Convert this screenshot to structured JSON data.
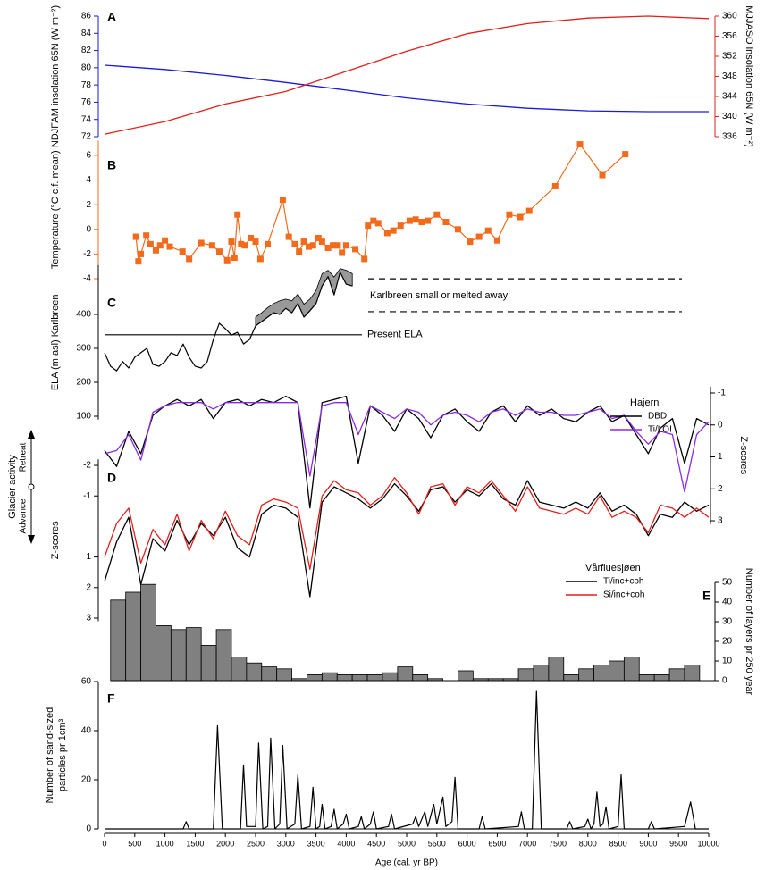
{
  "glacier_activity": {
    "title": "Glacier activity",
    "up": "Retreat",
    "down": "Advance"
  },
  "chart_data": [
    {
      "type": "line",
      "label": "A",
      "ylabel": "NDJFAM insolation 65N (W m⁻²)",
      "y2label": "MJJASO insolation 65N (W m⁻²)",
      "xlim": [
        0,
        10000
      ],
      "ylim": [
        72,
        86
      ],
      "yticks": [
        72,
        74,
        76,
        78,
        80,
        82,
        84,
        86
      ],
      "y2lim": [
        336,
        360
      ],
      "y2ticks": [
        336,
        340,
        344,
        348,
        352,
        356,
        360
      ],
      "x": [
        0,
        1000,
        2000,
        3000,
        4000,
        5000,
        6000,
        7000,
        8000,
        9000,
        10000
      ],
      "series": [
        {
          "color": "#1a1adb",
          "values": [
            80.3,
            79.8,
            79.1,
            78.3,
            77.4,
            76.5,
            75.8,
            75.3,
            75.0,
            74.9,
            74.9
          ]
        },
        {
          "color": "#e0201b",
          "axis": "y2",
          "values": [
            336.5,
            339,
            342.5,
            345,
            349,
            353,
            356.5,
            358.5,
            359.6,
            360,
            359.5
          ]
        }
      ]
    },
    {
      "type": "line",
      "label": "B",
      "ylabel": "Temperature (°C c.f. mean)",
      "color": "#f26b1d",
      "marker": "square",
      "xlim": [
        0,
        10000
      ],
      "ylim": [
        -4,
        7.2
      ],
      "yticks": [
        -4,
        -2,
        0,
        2,
        4,
        6
      ],
      "x": [
        520,
        560,
        600,
        690,
        760,
        850,
        920,
        1000,
        1080,
        1290,
        1400,
        1600,
        1780,
        1900,
        2030,
        2100,
        2150,
        2200,
        2260,
        2320,
        2420,
        2500,
        2580,
        2700,
        2950,
        3050,
        3150,
        3220,
        3300,
        3380,
        3450,
        3540,
        3600,
        3700,
        3780,
        3860,
        3930,
        4000,
        4150,
        4300,
        4360,
        4450,
        4530,
        4680,
        4780,
        4900,
        5050,
        5150,
        5250,
        5350,
        5500,
        5650,
        5850,
        6050,
        6200,
        6350,
        6500,
        6700,
        6880,
        7030,
        7460,
        7870,
        8240,
        8620
      ],
      "values": [
        -0.6,
        -2.6,
        -2.0,
        -0.5,
        -1.2,
        -1.7,
        -1.3,
        -0.9,
        -1.4,
        -1.8,
        -2.4,
        -1.1,
        -1.3,
        -1.8,
        -2.5,
        -1.0,
        -2.3,
        1.2,
        -1.2,
        -1.3,
        -0.7,
        -1.0,
        -2.4,
        -1.2,
        2.4,
        -0.6,
        -1.2,
        -1.8,
        -1.0,
        -1.4,
        -1.3,
        -0.7,
        -1.0,
        -1.5,
        -1.3,
        -1.3,
        -1.9,
        -1.3,
        -1.6,
        -2.4,
        0.3,
        0.7,
        0.5,
        -0.3,
        -0.1,
        0.3,
        0.7,
        0.8,
        0.6,
        0.7,
        1.2,
        0.6,
        0,
        -1.0,
        -0.6,
        -0.1,
        -0.9,
        1.2,
        1.0,
        1.5,
        3.5,
        6.9,
        4.4,
        6.1
      ]
    },
    {
      "type": "line",
      "label": "C",
      "ylabel": "ELA (m asl) Karlbreen",
      "color": "#000000",
      "band_color": "#999999",
      "xlim": [
        0,
        10000
      ],
      "ylim": [
        90,
        545
      ],
      "yticks": [
        100,
        200,
        300,
        400
      ],
      "x": [
        0,
        100,
        200,
        300,
        400,
        500,
        600,
        700,
        800,
        900,
        1000,
        1100,
        1200,
        1300,
        1400,
        1500,
        1600,
        1700,
        1800,
        1900,
        2000,
        2100,
        2200,
        2300,
        2400,
        2500,
        2600,
        2700,
        2800,
        2900,
        3000,
        3100,
        3200,
        3300,
        3400,
        3500,
        3600,
        3700,
        3800,
        3900,
        4000,
        4100
      ],
      "values": [
        287,
        247,
        234,
        261,
        242,
        274,
        287,
        300,
        253,
        247,
        261,
        287,
        279,
        313,
        274,
        247,
        242,
        261,
        326,
        374,
        358,
        339,
        347,
        313,
        326,
        366,
        379,
        392,
        405,
        400,
        418,
        405,
        432,
        392,
        411,
        432,
        484,
        511,
        458,
        524,
        489,
        484
      ],
      "band": {
        "x": [
          2500,
          2600,
          2700,
          2800,
          2900,
          3000,
          3100,
          3200,
          3300,
          3400,
          3500,
          3600,
          3700,
          3800,
          3900,
          4000,
          4100
        ],
        "low": [
          366,
          379,
          392,
          405,
          400,
          418,
          405,
          432,
          392,
          411,
          432,
          484,
          511,
          458,
          524,
          489,
          484
        ],
        "high": [
          392,
          405,
          420,
          432,
          440,
          445,
          440,
          460,
          430,
          445,
          470,
          520,
          530,
          510,
          535,
          530,
          520
        ]
      },
      "reference_lines": [
        {
          "value": 340,
          "style": "solid",
          "label": "Present ELA"
        },
        {
          "value": 505,
          "style": "dashed"
        },
        {
          "value": 408,
          "style": "dashed"
        }
      ],
      "annotation": "Karlbreen small or melted away"
    },
    {
      "type": "line",
      "ylabel": "Z-scores",
      "y_inverted": true,
      "legend_title": "Hajern",
      "legend": "upper right",
      "xlim": [
        0,
        10000
      ],
      "ylim": [
        -1.2,
        3.1
      ],
      "yticks": [
        -1,
        0,
        1,
        2,
        3
      ],
      "x": [
        0,
        200,
        400,
        600,
        800,
        1000,
        1200,
        1400,
        1600,
        1800,
        2000,
        2200,
        2400,
        2600,
        2800,
        3000,
        3200,
        3400,
        3600,
        3800,
        4000,
        4200,
        4400,
        4600,
        4800,
        5000,
        5200,
        5400,
        5600,
        5800,
        6000,
        6200,
        6400,
        6600,
        6800,
        7000,
        7200,
        7400,
        7600,
        7800,
        8000,
        8200,
        8400,
        8600,
        8800,
        9000,
        9200,
        9400,
        9600,
        9800,
        10000
      ],
      "series": [
        {
          "name": "DBD",
          "color": "#000000",
          "values": [
            0.8,
            1.3,
            0.2,
            0.9,
            -0.3,
            -0.6,
            -0.8,
            -0.6,
            -0.8,
            -0.2,
            -0.7,
            -0.8,
            -0.6,
            -0.8,
            -0.7,
            -0.9,
            -0.7,
            2.6,
            -0.7,
            -0.8,
            -0.9,
            1.2,
            -0.6,
            -0.3,
            0.2,
            -0.5,
            -0.2,
            0.4,
            -0.3,
            -0.5,
            -0.1,
            0.2,
            -0.4,
            -0.6,
            -0.1,
            -0.6,
            -0.3,
            -0.5,
            -0.2,
            -0.1,
            -0.4,
            -0.6,
            -0.1,
            -0.3,
            0.3,
            0.9,
            0.1,
            -0.2,
            1.2,
            -0.2,
            0
          ]
        },
        {
          "name": "Ti/LOI",
          "color": "#8a2be2",
          "values": [
            0.9,
            0.8,
            0.3,
            1.1,
            -0.4,
            -0.6,
            -0.7,
            -0.7,
            -0.7,
            -0.5,
            -0.7,
            -0.7,
            -0.7,
            -0.7,
            -0.7,
            -0.7,
            -0.7,
            1.6,
            -0.6,
            -0.7,
            -0.7,
            0.3,
            -0.6,
            -0.4,
            -0.2,
            -0.5,
            -0.4,
            0,
            -0.3,
            -0.4,
            -0.3,
            -0.1,
            -0.4,
            -0.5,
            -0.3,
            -0.5,
            -0.4,
            -0.4,
            -0.3,
            -0.3,
            -0.4,
            -0.5,
            -0.2,
            -0.3,
            0.2,
            0.6,
            0.2,
            0.3,
            2.1,
            0.3,
            -0.1
          ]
        }
      ]
    },
    {
      "type": "line",
      "label": "D",
      "ylabel": "Z-scores",
      "y_inverted": true,
      "legend_title": "Vårfluesjøen",
      "legend": "lower right",
      "xlim": [
        0,
        10000
      ],
      "ylim": [
        -2.2,
        3.1
      ],
      "yticks": [
        -2,
        -1,
        1,
        2,
        3
      ],
      "x": [
        0,
        200,
        400,
        600,
        800,
        1000,
        1200,
        1400,
        1600,
        1800,
        2000,
        2200,
        2400,
        2600,
        2800,
        3000,
        3200,
        3400,
        3600,
        3800,
        4000,
        4200,
        4400,
        4600,
        4800,
        5000,
        5200,
        5400,
        5600,
        5800,
        6000,
        6200,
        6400,
        6600,
        6800,
        7000,
        7200,
        7400,
        7600,
        7800,
        8000,
        8200,
        8400,
        8600,
        8800,
        9000,
        9200,
        9400,
        9600,
        9800,
        10000
      ],
      "series": [
        {
          "name": "Ti/inc+coh",
          "color": "#000000",
          "values": [
            1.8,
            0.5,
            -0.3,
            1.9,
            0.4,
            0.8,
            -0.2,
            0.6,
            -0.1,
            0.3,
            -0.3,
            0.7,
            1.0,
            -0.4,
            -0.7,
            -0.6,
            -0.3,
            2.3,
            -0.8,
            -1.3,
            -1.1,
            -0.9,
            -0.6,
            -0.9,
            -1.4,
            -1.0,
            -0.5,
            -1.2,
            -1.3,
            -0.8,
            -1.2,
            -1.0,
            -1.4,
            -0.9,
            -0.7,
            -1.5,
            -0.8,
            -0.7,
            -0.6,
            -0.8,
            -0.6,
            -1.1,
            -0.5,
            -0.7,
            -0.4,
            0.3,
            -0.4,
            -0.3,
            -0.8,
            -0.5,
            -0.7
          ]
        },
        {
          "name": "Si/inc+coh",
          "color": "#e0201b",
          "values": [
            1.0,
            -0.1,
            -0.6,
            1.2,
            0.1,
            0.6,
            -0.4,
            0.8,
            -0.2,
            0.4,
            -0.5,
            0.3,
            0.6,
            -0.7,
            -0.9,
            -0.8,
            -0.6,
            1.4,
            -1.0,
            -1.5,
            -1.2,
            -1.1,
            -0.7,
            -1.0,
            -1.6,
            -1.1,
            -0.4,
            -1.3,
            -1.4,
            -0.7,
            -1.3,
            -1.1,
            -1.5,
            -1.0,
            -0.5,
            -1.3,
            -0.6,
            -0.5,
            -0.4,
            -0.6,
            -0.4,
            -1.0,
            -0.3,
            -0.5,
            -0.3,
            0.2,
            -0.7,
            -0.6,
            -0.3,
            -0.6,
            -0.3
          ]
        }
      ]
    },
    {
      "type": "histogram",
      "label": "E",
      "ylabel": "Number of layers pr 250 year",
      "color": "#808080",
      "xlim": [
        0,
        10000
      ],
      "ylim": [
        0,
        50
      ],
      "yticks": [
        0,
        10,
        20,
        30,
        40,
        50
      ],
      "bins": [
        100,
        350,
        600,
        850,
        1100,
        1350,
        1600,
        1850,
        2100,
        2350,
        2600,
        2850,
        3100,
        3350,
        3600,
        3850,
        4100,
        4350,
        4600,
        4850,
        5100,
        5350,
        5600,
        5850,
        6100,
        6350,
        6600,
        6850,
        7100,
        7350,
        7600,
        7850,
        8100,
        8350,
        8600,
        8850,
        9100,
        9350,
        9600,
        9850
      ],
      "counts": [
        41,
        45,
        49,
        28,
        26,
        27,
        18,
        26,
        12,
        9,
        7,
        6,
        1,
        3,
        4,
        3,
        3,
        3,
        4,
        7,
        3,
        1,
        0,
        5,
        1,
        1,
        1,
        6,
        8,
        12,
        3,
        6,
        8,
        10,
        12,
        3,
        3,
        6,
        8
      ]
    },
    {
      "type": "line",
      "label": "F",
      "ylabel": [
        "Number of sand-sized",
        "particles pr 1cm³"
      ],
      "xlabel": "Age (cal. yr BP)",
      "color": "#000000",
      "xlim": [
        0,
        10000
      ],
      "xticks": [
        0,
        500,
        1000,
        1500,
        2000,
        2500,
        3000,
        3500,
        4000,
        4500,
        5000,
        5500,
        6000,
        6500,
        7000,
        7500,
        8000,
        8500,
        9000,
        9500,
        10000
      ],
      "ylim": [
        0,
        60
      ],
      "yticks": [
        0,
        20,
        40,
        60
      ],
      "x": [
        0,
        1300,
        1350,
        1400,
        1800,
        1870,
        1950,
        2250,
        2300,
        2350,
        2500,
        2550,
        2620,
        2700,
        2750,
        2820,
        2900,
        2950,
        3020,
        3150,
        3200,
        3260,
        3400,
        3450,
        3500,
        3560,
        3600,
        3650,
        3750,
        3800,
        3850,
        3950,
        4000,
        4050,
        4200,
        4250,
        4300,
        4400,
        4450,
        4500,
        4700,
        4750,
        4800,
        5100,
        5150,
        5200,
        5300,
        5350,
        5450,
        5500,
        5600,
        5650,
        5750,
        5800,
        5850,
        6200,
        6250,
        6300,
        6850,
        6900,
        6950,
        7080,
        7150,
        7230,
        7650,
        7700,
        7750,
        7950,
        8000,
        8050,
        8100,
        8150,
        8200,
        8250,
        8300,
        8350,
        8500,
        8550,
        8600,
        9000,
        9050,
        9100,
        9600,
        9700,
        9780,
        10000
      ],
      "values": [
        0,
        0,
        3,
        0,
        0,
        42,
        0,
        0,
        26,
        1,
        1,
        35,
        0,
        1,
        37,
        0,
        2,
        34,
        0,
        2,
        22,
        0,
        1,
        17,
        0,
        1,
        10,
        0,
        1,
        8,
        0,
        2,
        6,
        0,
        1,
        5,
        0,
        2,
        7,
        0,
        1,
        6,
        0,
        2,
        5,
        1,
        7,
        1,
        10,
        2,
        13,
        1,
        3,
        21,
        0,
        0,
        5,
        0,
        1,
        7,
        0,
        0,
        56,
        0,
        0,
        3,
        0,
        1,
        4,
        0,
        2,
        15,
        1,
        2,
        9,
        0,
        1,
        22,
        0,
        0,
        3,
        0,
        1,
        11,
        0,
        0
      ]
    }
  ]
}
